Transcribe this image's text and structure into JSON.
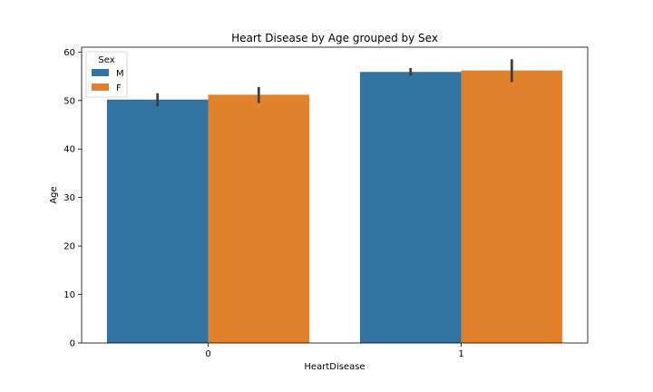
{
  "chart_data": {
    "type": "bar",
    "title": "Heart Disease by Age grouped by Sex",
    "xlabel": "HeartDisease",
    "ylabel": "Age",
    "categories": [
      "0",
      "1"
    ],
    "ylim": [
      0,
      61
    ],
    "yticks": [
      0,
      10,
      20,
      30,
      40,
      50,
      60
    ],
    "grid": false,
    "legend": {
      "title": "Sex",
      "placement": "top-left"
    },
    "series": [
      {
        "name": "M",
        "color": "#3274a1",
        "values": [
          50.2,
          55.9
        ],
        "error_low": [
          48.8,
          55.1
        ],
        "error_high": [
          51.5,
          56.7
        ]
      },
      {
        "name": "F",
        "color": "#e1812c",
        "values": [
          51.2,
          56.2
        ],
        "error_low": [
          49.5,
          53.8
        ],
        "error_high": [
          52.8,
          58.5
        ]
      }
    ]
  }
}
